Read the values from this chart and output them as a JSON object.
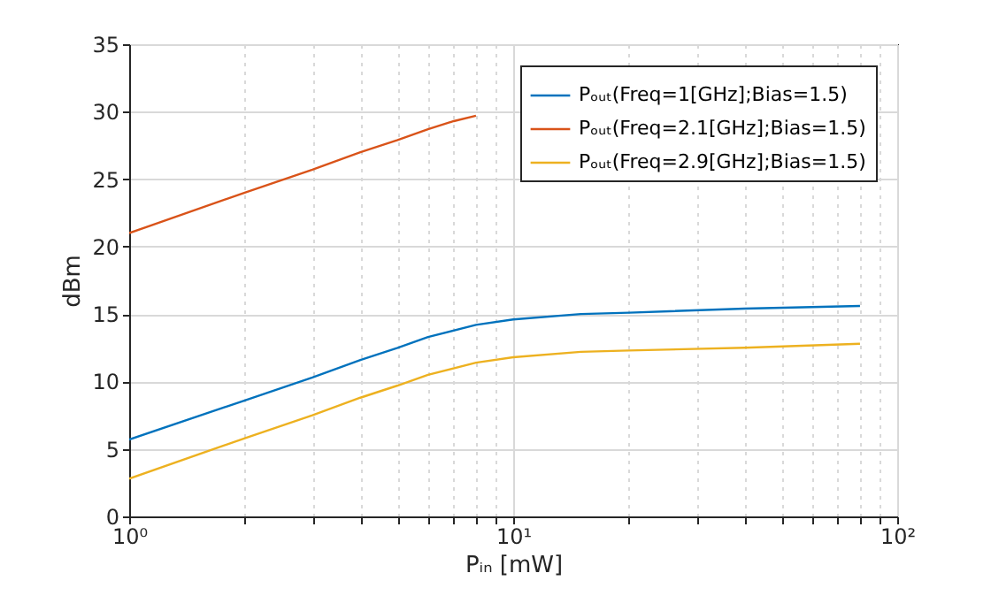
{
  "chart_data": {
    "type": "line",
    "xlabel": "Pᵢₙ [mW]",
    "ylabel": "dBm",
    "log": "x",
    "grid": true,
    "legend": "top right",
    "xlim": [
      1,
      100
    ],
    "ylim": [
      0,
      35
    ],
    "yticks": [
      0,
      5,
      10,
      15,
      20,
      25,
      30,
      35
    ],
    "xticks": [
      {
        "value": 1,
        "label": "10⁰"
      },
      {
        "value": 2,
        "label": null
      },
      {
        "value": 3,
        "label": null
      },
      {
        "value": 4,
        "label": null
      },
      {
        "value": 5,
        "label": null
      },
      {
        "value": 6,
        "label": null
      },
      {
        "value": 7,
        "label": null
      },
      {
        "value": 8,
        "label": null
      },
      {
        "value": 9,
        "label": null
      },
      {
        "value": 10,
        "label": "10¹"
      },
      {
        "value": 20,
        "label": null
      },
      {
        "value": 30,
        "label": null
      },
      {
        "value": 40,
        "label": null
      },
      {
        "value": 50,
        "label": null
      },
      {
        "value": 60,
        "label": null
      },
      {
        "value": 70,
        "label": null
      },
      {
        "value": 80,
        "label": null
      },
      {
        "value": 90,
        "label": null
      },
      {
        "value": 100,
        "label": "10²"
      }
    ],
    "series": [
      {
        "name": "Pₒᵤₜ(Freq=1[GHz];Bias=1.5)",
        "color": "#0072bd",
        "x": [
          1,
          2,
          3,
          4,
          5,
          6,
          8,
          10,
          15,
          20,
          40,
          80
        ],
        "values": [
          5.7,
          8.6,
          10.3,
          11.6,
          12.5,
          13.3,
          14.2,
          14.6,
          15.0,
          15.1,
          15.4,
          15.6
        ]
      },
      {
        "name": "Pₒᵤₜ(Freq=2.1[GHz];Bias=1.5)",
        "color": "#d95319",
        "x": [
          1,
          2,
          3,
          4,
          5,
          6,
          7,
          8
        ],
        "values": [
          21.0,
          24.0,
          25.7,
          27.0,
          27.9,
          28.7,
          29.3,
          29.7
        ]
      },
      {
        "name": "Pₒᵤₜ(Freq=2.9[GHz];Bias=1.5)",
        "color": "#edb120",
        "x": [
          1,
          2,
          3,
          4,
          5,
          6,
          8,
          10,
          15,
          20,
          40,
          80
        ],
        "values": [
          2.8,
          5.8,
          7.5,
          8.8,
          9.7,
          10.5,
          11.4,
          11.8,
          12.2,
          12.3,
          12.5,
          12.8
        ]
      }
    ]
  }
}
